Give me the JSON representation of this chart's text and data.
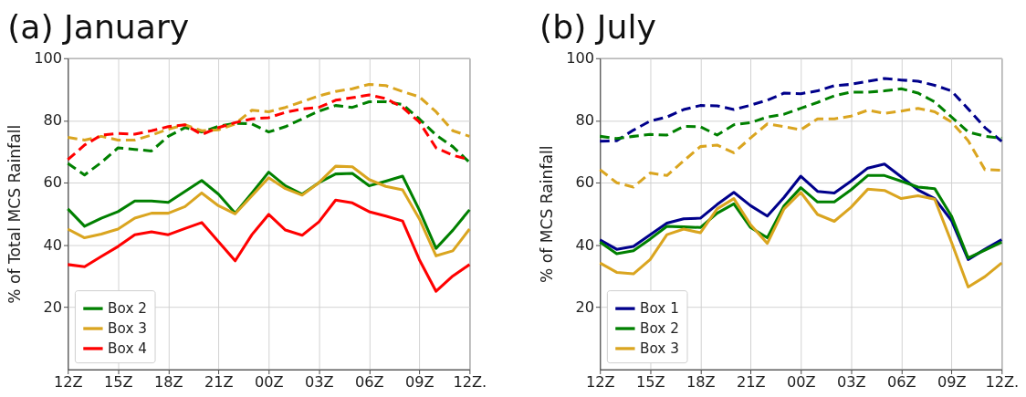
{
  "chart_data": [
    {
      "type": "line",
      "title": "(a) January",
      "ylabel": "% of Total MCS Rainfall",
      "categories": [
        "12Z",
        null,
        null,
        "15Z",
        null,
        null,
        "18Z",
        null,
        null,
        "21Z",
        null,
        null,
        "00Z",
        null,
        null,
        "03Z",
        null,
        null,
        "06Z",
        null,
        null,
        "09Z",
        null,
        null,
        "12Z."
      ],
      "ylim": [
        0,
        100
      ],
      "yticks": [
        20,
        40,
        60,
        80,
        100
      ],
      "grid": true,
      "legend": "bottom left",
      "series": [
        {
          "name": "Box 2",
          "color": "#008000",
          "line_style": "solid",
          "values": [
            51.6,
            46,
            48.6,
            50.7,
            54.1,
            54.1,
            53.7,
            57.2,
            60.7,
            56.3,
            50.2,
            56.7,
            63.4,
            59,
            56.3,
            60,
            62.8,
            63,
            59,
            60.5,
            62.1,
            51.2,
            38.9,
            44.7,
            51.3
          ]
        },
        {
          "name": "Box 3",
          "color": "#daa520",
          "line_style": "solid",
          "values": [
            45.1,
            42.3,
            43.5,
            45.1,
            48.6,
            50.2,
            50.2,
            52.3,
            56.7,
            52.6,
            50,
            55.8,
            61.6,
            58.1,
            56,
            60,
            65.3,
            65.1,
            61,
            58.8,
            57.7,
            48.4,
            36.5,
            38.1,
            45.1
          ]
        },
        {
          "name": "Box 4",
          "color": "#ff0000",
          "line_style": "solid",
          "values": [
            33.7,
            33,
            36.3,
            39.5,
            43.3,
            44.2,
            43.3,
            45.3,
            47.2,
            41.1,
            34.9,
            43.3,
            49.8,
            44.8,
            43.1,
            47.4,
            54.4,
            53.5,
            50.7,
            49.3,
            47.7,
            35.3,
            25.1,
            30,
            33.7
          ]
        },
        {
          "color": "#008000",
          "line_style": "dashed",
          "values": [
            66.2,
            62.5,
            66.5,
            71.2,
            70.7,
            70.2,
            74.9,
            77.7,
            76.3,
            78.1,
            79.1,
            78.9,
            76.3,
            78,
            80.5,
            83,
            84.8,
            84.2,
            86,
            86,
            85.1,
            80.5,
            75.3,
            71.6,
            66.5
          ]
        },
        {
          "color": "#daa520",
          "line_style": "dashed",
          "values": [
            74.6,
            73.7,
            74.9,
            73.7,
            73.7,
            75.3,
            77.2,
            78.6,
            76.7,
            77,
            78.9,
            83.3,
            82.8,
            84.2,
            86,
            87.9,
            89.3,
            90.2,
            91.6,
            91.2,
            89.3,
            87.6,
            82.8,
            76.7,
            74.9
          ]
        },
        {
          "color": "#ff0000",
          "line_style": "dashed",
          "values": [
            67.4,
            72.1,
            75.3,
            75.8,
            75.6,
            76.7,
            78,
            78.6,
            75.5,
            77.7,
            79.3,
            80.5,
            80.9,
            82.6,
            83.7,
            84.2,
            86.5,
            87.3,
            88.2,
            87,
            84.2,
            79.5,
            71.2,
            68.8,
            67.4
          ]
        }
      ]
    },
    {
      "type": "line",
      "title": "(b) July",
      "ylabel": "% of MCS Rainfall",
      "categories": [
        "12Z",
        null,
        null,
        "15Z",
        null,
        null,
        "18Z",
        null,
        null,
        "21Z",
        null,
        null,
        "00Z",
        null,
        null,
        "03Z",
        null,
        null,
        "06Z",
        null,
        null,
        "09Z",
        null,
        null,
        "12Z."
      ],
      "ylim": [
        0,
        100
      ],
      "yticks": [
        20,
        40,
        60,
        80,
        100
      ],
      "grid": true,
      "legend": "bottom left",
      "series": [
        {
          "name": "Box 1",
          "color": "#00008b",
          "line_style": "solid",
          "values": [
            41.6,
            38.6,
            39.5,
            43.3,
            47,
            48.4,
            48.6,
            53,
            56.9,
            52.6,
            49.3,
            55.3,
            62.1,
            57.2,
            56.7,
            60.5,
            64.7,
            66,
            61.9,
            57.7,
            54.9,
            47.9,
            35.3,
            38.6,
            41.7
          ]
        },
        {
          "name": "Box 2",
          "color": "#008000",
          "line_style": "solid",
          "values": [
            40.9,
            37.2,
            38.1,
            41.9,
            46,
            45.8,
            45.6,
            50.2,
            53.2,
            45.6,
            42.3,
            52.6,
            58.4,
            53.8,
            53.8,
            57.7,
            62.3,
            62.3,
            60.5,
            58.6,
            58.1,
            49.3,
            35.8,
            38.3,
            40.9
          ]
        },
        {
          "name": "Box 3",
          "color": "#daa520",
          "line_style": "solid",
          "values": [
            34.2,
            31.2,
            30.7,
            35.3,
            43.3,
            45.1,
            43.9,
            51.6,
            54.9,
            46.5,
            40.5,
            51.6,
            56.9,
            49.8,
            47.6,
            52.1,
            57.9,
            57.5,
            54.9,
            55.8,
            54.7,
            40.9,
            26.5,
            29.8,
            34.2
          ]
        },
        {
          "color": "#00008b",
          "line_style": "dashed",
          "values": [
            73.3,
            73.5,
            76.9,
            79.8,
            81.1,
            83.5,
            84.8,
            84.7,
            83.5,
            84.9,
            86.5,
            88.8,
            88.6,
            89.5,
            91.2,
            91.6,
            92.6,
            93.5,
            93,
            92.6,
            91.3,
            89.5,
            83.7,
            77.7,
            73.3
          ]
        },
        {
          "color": "#008000",
          "line_style": "dashed",
          "values": [
            74.9,
            74.2,
            74.9,
            75.5,
            75.3,
            78.1,
            78,
            75.3,
            78.6,
            79.3,
            81.1,
            82,
            83.9,
            85.8,
            87.9,
            89.1,
            89.1,
            89.5,
            90.2,
            88.8,
            86,
            81.1,
            76.3,
            74.9,
            74.3
          ]
        },
        {
          "color": "#daa520",
          "line_style": "dashed",
          "values": [
            64.2,
            60,
            58.6,
            63.1,
            62.3,
            67,
            71.6,
            72.1,
            69.6,
            74.4,
            78.9,
            78,
            77,
            80.5,
            80.5,
            81.4,
            83.3,
            82.3,
            83,
            83.9,
            82.8,
            79.5,
            73.5,
            64.2,
            64
          ]
        }
      ]
    }
  ]
}
